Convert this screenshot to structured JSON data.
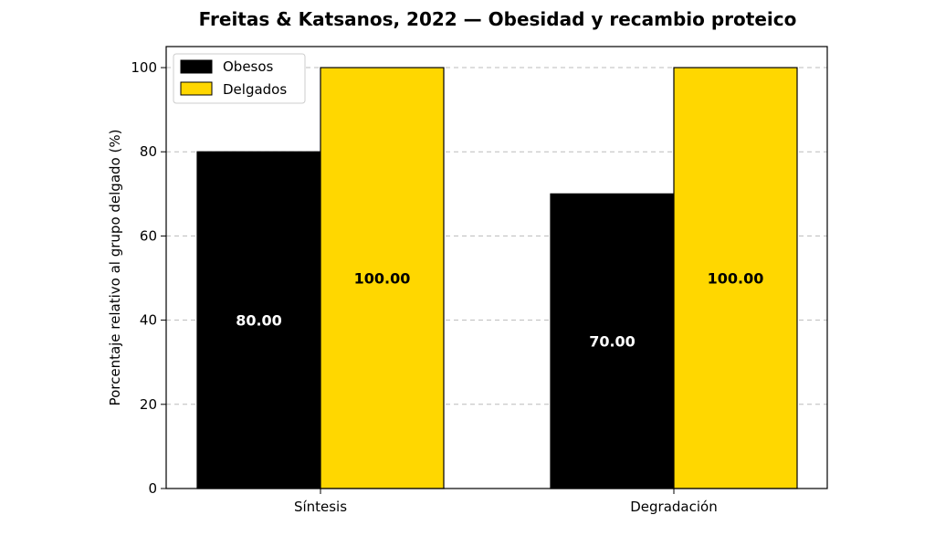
{
  "chart_data": {
    "type": "bar",
    "title": "Freitas & Katsanos, 2022 — Obesidad y recambio proteico",
    "xlabel": "",
    "ylabel": "Porcentaje relativo al grupo delgado (%)",
    "categories": [
      "Síntesis",
      "Degradación"
    ],
    "series": [
      {
        "name": "Obesos",
        "values": [
          80.0,
          70.0
        ],
        "color": "#000000",
        "label_color": "#ffffff",
        "labels": [
          "80.00",
          "70.00"
        ]
      },
      {
        "name": "Delgados",
        "values": [
          100.0,
          100.0
        ],
        "color": "#ffd700",
        "label_color": "#000000",
        "labels": [
          "100.00",
          "100.00"
        ]
      }
    ],
    "yticks": [
      "0",
      "20",
      "40",
      "60",
      "80",
      "100"
    ],
    "ylim": [
      0,
      105
    ],
    "grid": "y-dashed",
    "legend_position": "top-left"
  }
}
